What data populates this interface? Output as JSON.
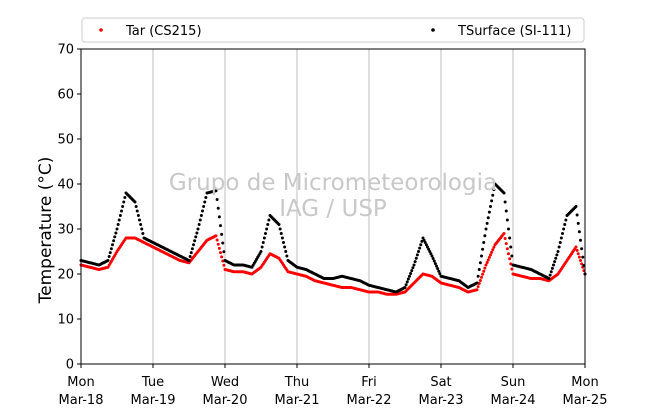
{
  "chart_data": {
    "type": "scatter",
    "ylabel": "Temperature (°C)",
    "ylim": [
      0,
      70
    ],
    "yticks": [
      0,
      10,
      20,
      30,
      40,
      50,
      60,
      70
    ],
    "xlim": [
      "2019-03-18 00:00",
      "2019-03-25 00:00"
    ],
    "xticks": [
      {
        "weekday": "Mon",
        "date": "Mar-18"
      },
      {
        "weekday": "Tue",
        "date": "Mar-19"
      },
      {
        "weekday": "Wed",
        "date": "Mar-20"
      },
      {
        "weekday": "Thu",
        "date": "Mar-21"
      },
      {
        "weekday": "Fri",
        "date": "Mar-22"
      },
      {
        "weekday": "Sat",
        "date": "Mar-23"
      },
      {
        "weekday": "Sun",
        "date": "Mar-24"
      },
      {
        "weekday": "Mon",
        "date": "Mar-25"
      }
    ],
    "grid": "vertical",
    "legend_position": "top",
    "watermark": [
      "Grupo de Micrometeorologia",
      "IAG / USP"
    ],
    "series": [
      {
        "name": "Tar (CS215)",
        "color": "#ff0000",
        "x": [
          "2019-03-18 00:00",
          "2019-03-18 03:00",
          "2019-03-18 06:00",
          "2019-03-18 09:00",
          "2019-03-18 12:00",
          "2019-03-18 15:00",
          "2019-03-18 18:00",
          "2019-03-18 21:00",
          "2019-03-19 00:00",
          "2019-03-19 03:00",
          "2019-03-19 06:00",
          "2019-03-19 09:00",
          "2019-03-19 12:00",
          "2019-03-19 15:00",
          "2019-03-19 18:00",
          "2019-03-19 21:00",
          "2019-03-20 00:00",
          "2019-03-20 03:00",
          "2019-03-20 06:00",
          "2019-03-20 09:00",
          "2019-03-20 12:00",
          "2019-03-20 15:00",
          "2019-03-20 18:00",
          "2019-03-20 21:00",
          "2019-03-21 00:00",
          "2019-03-21 03:00",
          "2019-03-21 06:00",
          "2019-03-21 09:00",
          "2019-03-21 12:00",
          "2019-03-21 15:00",
          "2019-03-21 18:00",
          "2019-03-21 21:00",
          "2019-03-22 00:00",
          "2019-03-22 03:00",
          "2019-03-22 06:00",
          "2019-03-22 09:00",
          "2019-03-22 12:00",
          "2019-03-22 15:00",
          "2019-03-22 18:00",
          "2019-03-22 21:00",
          "2019-03-23 00:00",
          "2019-03-23 03:00",
          "2019-03-23 06:00",
          "2019-03-23 09:00",
          "2019-03-23 12:00",
          "2019-03-23 15:00",
          "2019-03-23 18:00",
          "2019-03-23 21:00",
          "2019-03-24 00:00",
          "2019-03-24 03:00",
          "2019-03-24 06:00",
          "2019-03-24 09:00",
          "2019-03-24 12:00",
          "2019-03-24 15:00",
          "2019-03-24 18:00",
          "2019-03-24 21:00",
          "2019-03-25 00:00"
        ],
        "values": [
          22,
          21.5,
          21,
          21.5,
          25,
          28,
          28,
          27,
          26,
          25,
          24,
          23,
          22.5,
          25,
          27.5,
          28.5,
          21,
          20.5,
          20.5,
          20,
          21.5,
          24.5,
          23.5,
          20.5,
          20,
          19.5,
          18.5,
          18,
          17.5,
          17,
          17,
          16.5,
          16,
          16,
          15.5,
          15.5,
          16,
          18,
          20,
          19.5,
          18,
          17.5,
          17,
          16,
          16.5,
          22,
          26.5,
          29,
          20,
          19.5,
          19,
          19,
          18.5,
          20,
          23,
          26,
          20
        ]
      },
      {
        "name": "TSurface (SI-111)",
        "color": "#000000",
        "x": [
          "2019-03-18 00:00",
          "2019-03-18 03:00",
          "2019-03-18 06:00",
          "2019-03-18 09:00",
          "2019-03-18 12:00",
          "2019-03-18 15:00",
          "2019-03-18 18:00",
          "2019-03-18 21:00",
          "2019-03-19 00:00",
          "2019-03-19 03:00",
          "2019-03-19 06:00",
          "2019-03-19 09:00",
          "2019-03-19 12:00",
          "2019-03-19 15:00",
          "2019-03-19 18:00",
          "2019-03-19 21:00",
          "2019-03-20 00:00",
          "2019-03-20 03:00",
          "2019-03-20 06:00",
          "2019-03-20 09:00",
          "2019-03-20 12:00",
          "2019-03-20 15:00",
          "2019-03-20 18:00",
          "2019-03-20 21:00",
          "2019-03-21 00:00",
          "2019-03-21 03:00",
          "2019-03-21 06:00",
          "2019-03-21 09:00",
          "2019-03-21 12:00",
          "2019-03-21 15:00",
          "2019-03-21 18:00",
          "2019-03-21 21:00",
          "2019-03-22 00:00",
          "2019-03-22 03:00",
          "2019-03-22 06:00",
          "2019-03-22 09:00",
          "2019-03-22 12:00",
          "2019-03-22 15:00",
          "2019-03-22 18:00",
          "2019-03-22 21:00",
          "2019-03-23 00:00",
          "2019-03-23 03:00",
          "2019-03-23 06:00",
          "2019-03-23 09:00",
          "2019-03-23 12:00",
          "2019-03-23 15:00",
          "2019-03-23 18:00",
          "2019-03-23 21:00",
          "2019-03-24 00:00",
          "2019-03-24 03:00",
          "2019-03-24 06:00",
          "2019-03-24 09:00",
          "2019-03-24 12:00",
          "2019-03-24 15:00",
          "2019-03-24 18:00",
          "2019-03-24 21:00",
          "2019-03-25 00:00"
        ],
        "values": [
          23,
          22.5,
          22,
          23,
          30,
          38,
          36,
          28,
          27,
          26,
          25,
          24,
          23,
          30,
          38,
          38.5,
          23,
          22,
          22,
          21.5,
          25,
          33,
          31,
          23,
          21.5,
          21,
          20,
          19,
          19,
          19.5,
          19,
          18.5,
          17.5,
          17,
          16.5,
          16,
          17,
          22,
          28,
          24,
          19.5,
          19,
          18.5,
          17,
          18,
          30,
          40,
          38,
          22,
          21.5,
          21,
          20,
          19,
          25,
          33,
          35,
          20
        ]
      }
    ]
  }
}
